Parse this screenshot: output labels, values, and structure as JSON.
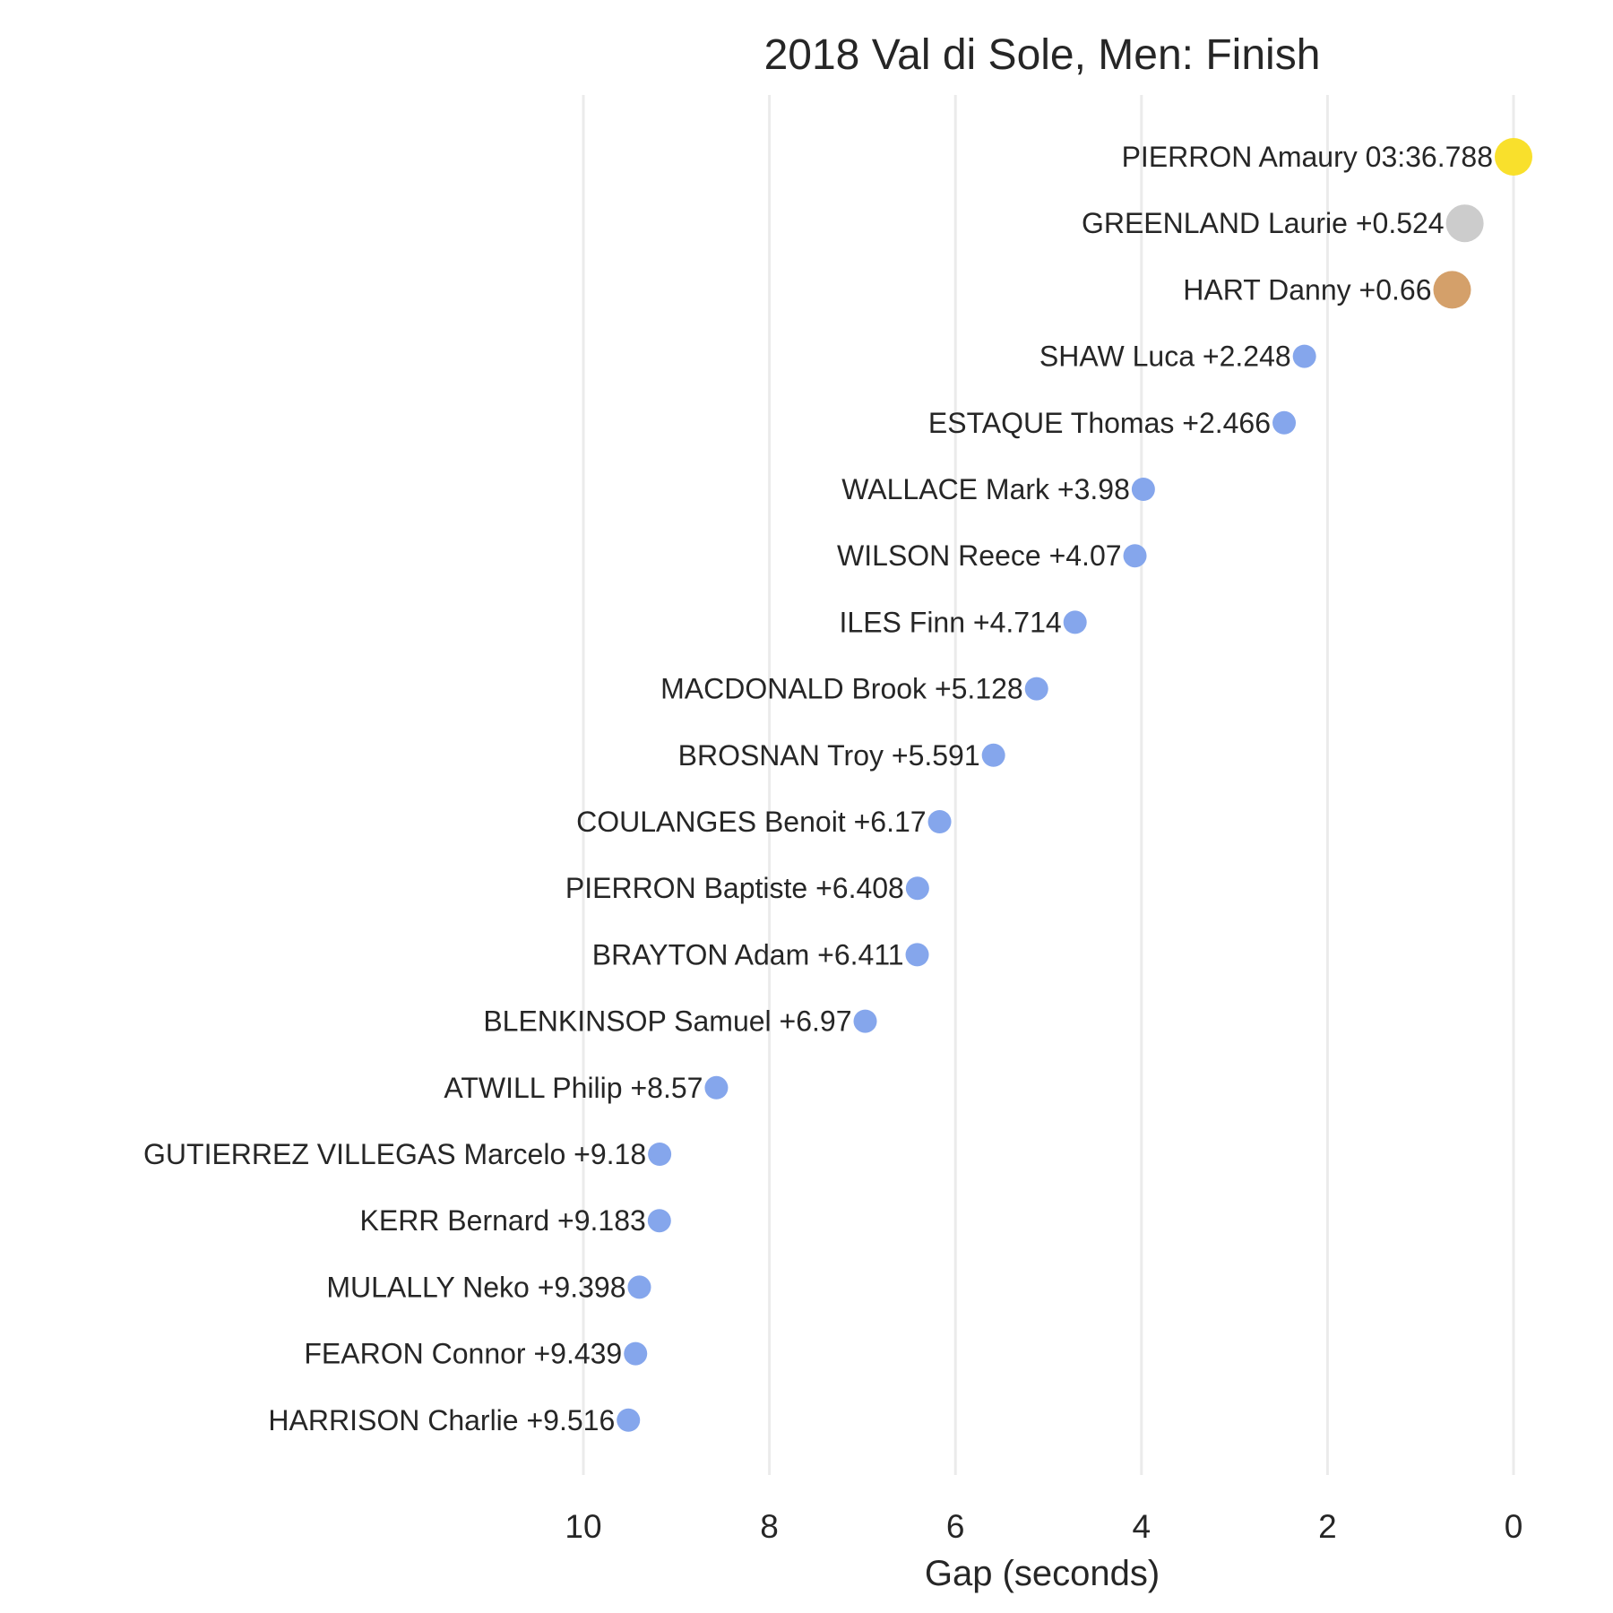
{
  "chart_data": {
    "type": "scatter",
    "title": "2018 Val di Sole, Men: Finish",
    "xlabel": "Gap (seconds)",
    "ylabel": "",
    "xlim": [
      10,
      0
    ],
    "x_inverted": true,
    "xticks": [
      10,
      8,
      6,
      4,
      2,
      0
    ],
    "grid": "vertical",
    "legend": "none",
    "series": [
      {
        "points": [
          {
            "rank": 1,
            "rider": "PIERRON Amaury",
            "label": "PIERRON Amaury 03:36.788",
            "gap": 0,
            "color": "#f9e02c",
            "size": "large"
          },
          {
            "rank": 2,
            "rider": "GREENLAND Laurie",
            "label": "GREENLAND Laurie +0.524",
            "gap": 0.524,
            "color": "#cccccc",
            "size": "large"
          },
          {
            "rank": 3,
            "rider": "HART Danny",
            "label": "HART Danny +0.66",
            "gap": 0.66,
            "color": "#d4a06a",
            "size": "large"
          },
          {
            "rank": 4,
            "rider": "SHAW Luca",
            "label": "SHAW Luca +2.248",
            "gap": 2.248,
            "color": "#85a6ec",
            "size": "small"
          },
          {
            "rank": 5,
            "rider": "ESTAQUE Thomas",
            "label": "ESTAQUE Thomas +2.466",
            "gap": 2.466,
            "color": "#85a6ec",
            "size": "small"
          },
          {
            "rank": 6,
            "rider": "WALLACE Mark",
            "label": "WALLACE Mark +3.98",
            "gap": 3.98,
            "color": "#85a6ec",
            "size": "small"
          },
          {
            "rank": 7,
            "rider": "WILSON Reece",
            "label": "WILSON Reece +4.07",
            "gap": 4.07,
            "color": "#85a6ec",
            "size": "small"
          },
          {
            "rank": 8,
            "rider": "ILES Finn",
            "label": "ILES Finn +4.714",
            "gap": 4.714,
            "color": "#85a6ec",
            "size": "small"
          },
          {
            "rank": 9,
            "rider": "MACDONALD Brook",
            "label": "MACDONALD Brook +5.128",
            "gap": 5.128,
            "color": "#85a6ec",
            "size": "small"
          },
          {
            "rank": 10,
            "rider": "BROSNAN Troy",
            "label": "BROSNAN Troy +5.591",
            "gap": 5.591,
            "color": "#85a6ec",
            "size": "small"
          },
          {
            "rank": 11,
            "rider": "COULANGES Benoit",
            "label": "COULANGES Benoit +6.17",
            "gap": 6.17,
            "color": "#85a6ec",
            "size": "small"
          },
          {
            "rank": 12,
            "rider": "PIERRON Baptiste",
            "label": "PIERRON Baptiste +6.408",
            "gap": 6.408,
            "color": "#85a6ec",
            "size": "small"
          },
          {
            "rank": 13,
            "rider": "BRAYTON Adam",
            "label": "BRAYTON Adam +6.411",
            "gap": 6.411,
            "color": "#85a6ec",
            "size": "small"
          },
          {
            "rank": 14,
            "rider": "BLENKINSOP Samuel",
            "label": "BLENKINSOP Samuel +6.97",
            "gap": 6.97,
            "color": "#85a6ec",
            "size": "small"
          },
          {
            "rank": 15,
            "rider": "ATWILL Philip",
            "label": "ATWILL Philip +8.57",
            "gap": 8.57,
            "color": "#85a6ec",
            "size": "small"
          },
          {
            "rank": 16,
            "rider": "GUTIERREZ VILLEGAS Marcelo",
            "label": "GUTIERREZ VILLEGAS Marcelo +9.18",
            "gap": 9.18,
            "color": "#85a6ec",
            "size": "small"
          },
          {
            "rank": 17,
            "rider": "KERR Bernard",
            "label": "KERR Bernard +9.183",
            "gap": 9.183,
            "color": "#85a6ec",
            "size": "small"
          },
          {
            "rank": 18,
            "rider": "MULALLY Neko",
            "label": "MULALLY Neko +9.398",
            "gap": 9.398,
            "color": "#85a6ec",
            "size": "small"
          },
          {
            "rank": 19,
            "rider": "FEARON Connor",
            "label": "FEARON Connor +9.439",
            "gap": 9.439,
            "color": "#85a6ec",
            "size": "small"
          },
          {
            "rank": 20,
            "rider": "HARRISON Charlie",
            "label": "HARRISON Charlie +9.516",
            "gap": 9.516,
            "color": "#85a6ec",
            "size": "small"
          }
        ]
      }
    ]
  },
  "colors": {
    "gold": "#f9e02c",
    "silver": "#cccccc",
    "bronze": "#d4a06a",
    "other": "#85a6ec",
    "grid": "#ebebeb",
    "text": "#262626"
  }
}
